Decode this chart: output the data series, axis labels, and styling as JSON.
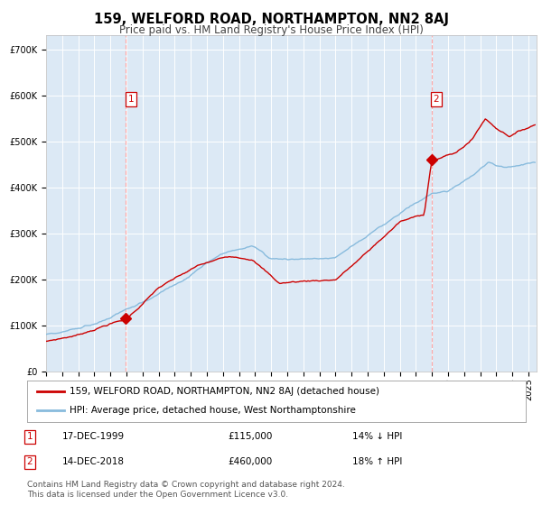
{
  "title": "159, WELFORD ROAD, NORTHAMPTON, NN2 8AJ",
  "subtitle": "Price paid vs. HM Land Registry's House Price Index (HPI)",
  "background_color": "#dce9f5",
  "plot_bg_color": "#dce9f5",
  "outer_bg_color": "#ffffff",
  "red_line_color": "#cc0000",
  "blue_line_color": "#88bbdd",
  "dashed_line_color": "#ffaaaa",
  "sale1_date": 1999.96,
  "sale1_price": 115000,
  "sale2_date": 2018.96,
  "sale2_price": 460000,
  "ylim": [
    0,
    730000
  ],
  "xlim_start": 1995.0,
  "xlim_end": 2025.5,
  "ytick_labels": [
    "£0",
    "£100K",
    "£200K",
    "£300K",
    "£400K",
    "£500K",
    "£600K",
    "£700K"
  ],
  "ytick_values": [
    0,
    100000,
    200000,
    300000,
    400000,
    500000,
    600000,
    700000
  ],
  "xlabel_years": [
    1995,
    1996,
    1997,
    1998,
    1999,
    2000,
    2001,
    2002,
    2003,
    2004,
    2005,
    2006,
    2007,
    2008,
    2009,
    2010,
    2011,
    2012,
    2013,
    2014,
    2015,
    2016,
    2017,
    2018,
    2019,
    2020,
    2021,
    2022,
    2023,
    2024,
    2025
  ],
  "legend_red": "159, WELFORD ROAD, NORTHAMPTON, NN2 8AJ (detached house)",
  "legend_blue": "HPI: Average price, detached house, West Northamptonshire",
  "table_row1": [
    "1",
    "17-DEC-1999",
    "£115,000",
    "14% ↓ HPI"
  ],
  "table_row2": [
    "2",
    "14-DEC-2018",
    "£460,000",
    "18% ↑ HPI"
  ],
  "footer": "Contains HM Land Registry data © Crown copyright and database right 2024.\nThis data is licensed under the Open Government Licence v3.0.",
  "title_fontsize": 10.5,
  "subtitle_fontsize": 8.5,
  "tick_fontsize": 7,
  "legend_fontsize": 7.5,
  "footer_fontsize": 6.5
}
